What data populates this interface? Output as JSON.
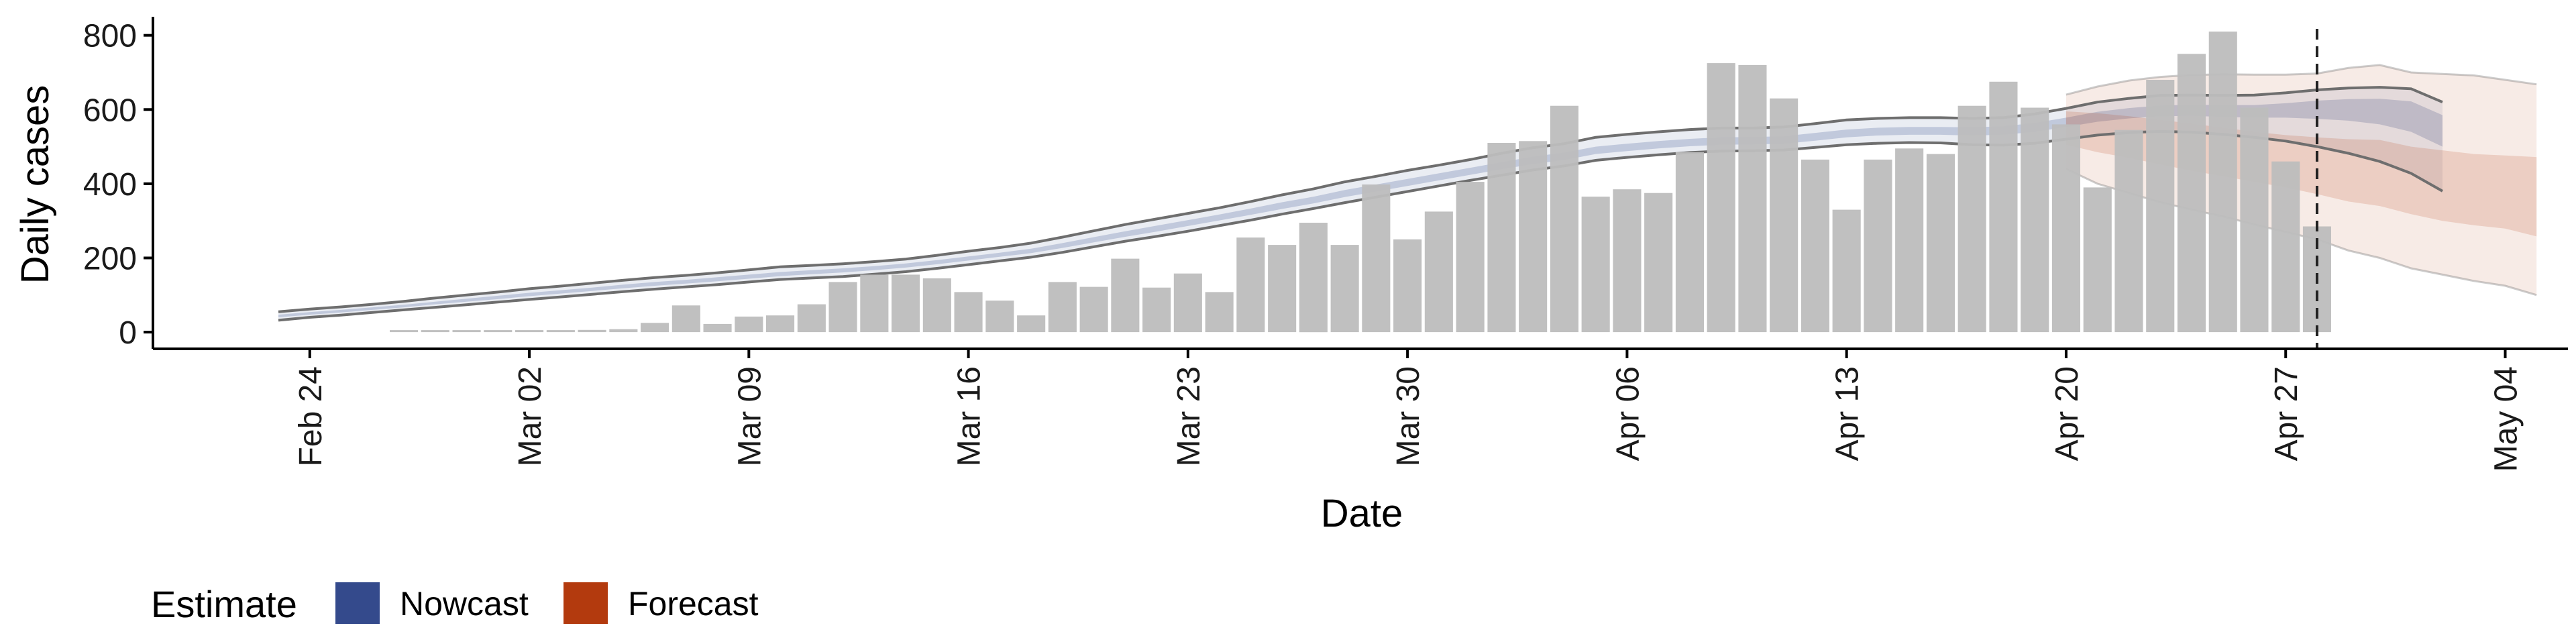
{
  "chart_data": {
    "type": "bar",
    "xlabel": "Date",
    "ylabel": "Daily cases",
    "ylim": [
      -45,
      850
    ],
    "y_ticks": [
      0,
      200,
      400,
      600,
      800
    ],
    "x_ticks": [
      {
        "date": "2020-02-24",
        "label": "Feb 24"
      },
      {
        "date": "2020-03-02",
        "label": "Mar 02"
      },
      {
        "date": "2020-03-09",
        "label": "Mar 09"
      },
      {
        "date": "2020-03-16",
        "label": "Mar 16"
      },
      {
        "date": "2020-03-23",
        "label": "Mar 23"
      },
      {
        "date": "2020-03-30",
        "label": "Mar 30"
      },
      {
        "date": "2020-04-06",
        "label": "Apr 06"
      },
      {
        "date": "2020-04-13",
        "label": "Apr 13"
      },
      {
        "date": "2020-04-20",
        "label": "Apr 20"
      },
      {
        "date": "2020-04-27",
        "label": "Apr 27"
      },
      {
        "date": "2020-05-04",
        "label": "May 04"
      }
    ],
    "xlim": [
      "2020-02-19",
      "2020-05-06"
    ],
    "bars": {
      "start_date": "2020-02-27",
      "values": [
        1,
        1,
        0,
        0,
        0,
        0,
        6,
        8,
        25,
        72,
        22,
        42,
        45,
        75,
        135,
        155,
        155,
        145,
        108,
        85,
        45,
        135,
        122,
        198,
        120,
        158,
        108,
        255,
        235,
        295,
        235,
        398,
        250,
        325,
        405,
        510,
        515,
        610,
        365,
        385,
        375,
        485,
        725,
        720,
        630,
        465,
        330,
        465,
        495,
        480,
        610,
        675,
        605,
        560,
        390,
        545,
        680,
        750,
        810,
        605,
        460,
        285
      ]
    },
    "nowcast": {
      "start_date": "2020-02-23",
      "outer_upper": [
        55,
        62,
        68,
        75,
        83,
        92,
        100,
        108,
        117,
        124,
        132,
        140,
        147,
        153,
        160,
        168,
        176,
        180,
        184,
        190,
        197,
        207,
        218,
        228,
        240,
        256,
        273,
        290,
        305,
        320,
        335,
        352,
        370,
        386,
        405,
        420,
        436,
        450,
        465,
        482,
        497,
        508,
        525,
        533,
        540,
        546,
        550,
        550,
        553,
        562,
        572,
        576,
        578,
        578,
        576,
        578,
        588,
        603,
        620,
        630,
        638,
        639,
        638,
        639,
        645,
        653,
        658,
        660,
        656,
        620
      ],
      "inner_upper": [
        47,
        54,
        60,
        67,
        74,
        82,
        90,
        98,
        106,
        113,
        120,
        128,
        135,
        141,
        148,
        155,
        162,
        167,
        172,
        178,
        185,
        194,
        204,
        214,
        225,
        240,
        256,
        272,
        287,
        302,
        317,
        333,
        350,
        365,
        383,
        398,
        413,
        428,
        443,
        458,
        473,
        484,
        500,
        508,
        515,
        521,
        525,
        526,
        528,
        537,
        546,
        551,
        553,
        553,
        552,
        555,
        564,
        578,
        594,
        604,
        611,
        613,
        612,
        612,
        617,
        624,
        628,
        629,
        622,
        585
      ],
      "inner_lower": [
        40,
        47,
        53,
        60,
        67,
        75,
        82,
        89,
        97,
        104,
        111,
        118,
        125,
        131,
        137,
        144,
        151,
        156,
        161,
        167,
        174,
        183,
        193,
        203,
        213,
        227,
        242,
        257,
        271,
        286,
        301,
        316,
        332,
        347,
        364,
        379,
        394,
        409,
        424,
        439,
        453,
        464,
        480,
        488,
        495,
        501,
        505,
        506,
        508,
        516,
        525,
        530,
        532,
        532,
        530,
        532,
        540,
        553,
        567,
        576,
        582,
        583,
        580,
        578,
        578,
        575,
        570,
        560,
        540,
        500
      ],
      "outer_lower": [
        32,
        40,
        46,
        53,
        60,
        67,
        74,
        81,
        88,
        95,
        102,
        109,
        116,
        122,
        128,
        135,
        142,
        146,
        150,
        156,
        163,
        172,
        182,
        192,
        202,
        215,
        230,
        245,
        258,
        272,
        287,
        302,
        318,
        333,
        349,
        364,
        379,
        394,
        409,
        423,
        437,
        448,
        463,
        471,
        478,
        484,
        488,
        489,
        491,
        498,
        505,
        509,
        511,
        510,
        505,
        504,
        509,
        520,
        531,
        538,
        541,
        539,
        533,
        525,
        515,
        500,
        482,
        460,
        428,
        380
      ]
    },
    "forecast": {
      "start_date": "2020-04-20",
      "outer_upper": [
        640,
        662,
        678,
        688,
        693,
        695,
        694,
        694,
        697,
        712,
        720,
        700,
        696,
        692,
        680,
        668
      ],
      "inner_upper": [
        595,
        590,
        582,
        572,
        562,
        551,
        540,
        531,
        525,
        520,
        518,
        500,
        490,
        480,
        476,
        472
      ],
      "inner_lower": [
        505,
        485,
        470,
        452,
        435,
        420,
        405,
        390,
        372,
        352,
        340,
        318,
        300,
        288,
        279,
        258
      ],
      "outer_lower": [
        440,
        400,
        375,
        350,
        330,
        312,
        290,
        270,
        250,
        220,
        200,
        172,
        155,
        138,
        125,
        100
      ]
    },
    "vline_date": "2020-04-28",
    "grid": false,
    "legend": {
      "placement": "bottom-left",
      "title": "Estimate",
      "entries": [
        {
          "label": "Nowcast",
          "color": "#344a8c"
        },
        {
          "label": "Forecast",
          "color": "#b33a0e"
        }
      ]
    },
    "colors": {
      "bars": "#bdbdbd",
      "nowcast_band": "#344a8c",
      "forecast_band": "#b33a0e",
      "band_edge_lines": "#6e6e6e",
      "vline": "#222222",
      "axis": "#000000"
    }
  }
}
